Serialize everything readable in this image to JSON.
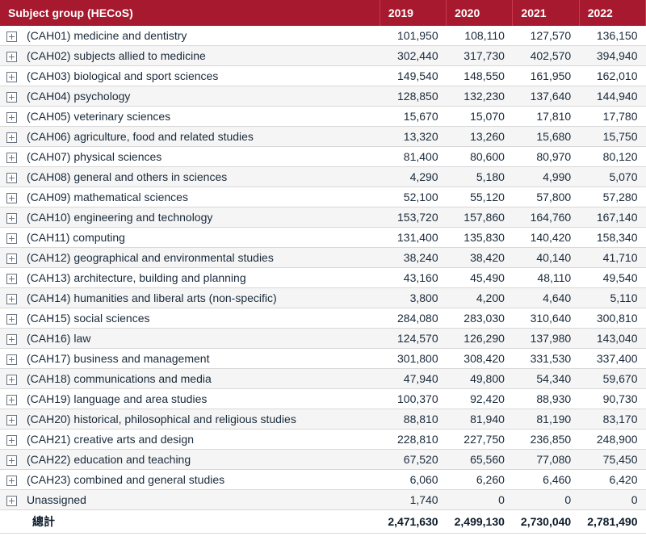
{
  "table": {
    "header_bg": "#a6192e",
    "header_fg": "#ffffff",
    "row_alt_bg": "#f5f5f5",
    "row_bg": "#ffffff",
    "border_color": "#d8d8d8",
    "text_color": "#1a2a3a",
    "font_size": 14,
    "columns": {
      "subject": "Subject group (HECoS)",
      "y2019": "2019",
      "y2020": "2020",
      "y2021": "2021",
      "y2022": "2022"
    },
    "rows": [
      {
        "label": "(CAH01) medicine and dentistry",
        "y2019": "101,950",
        "y2020": "108,110",
        "y2021": "127,570",
        "y2022": "136,150"
      },
      {
        "label": "(CAH02) subjects allied to medicine",
        "y2019": "302,440",
        "y2020": "317,730",
        "y2021": "402,570",
        "y2022": "394,940"
      },
      {
        "label": "(CAH03) biological and sport sciences",
        "y2019": "149,540",
        "y2020": "148,550",
        "y2021": "161,950",
        "y2022": "162,010"
      },
      {
        "label": "(CAH04) psychology",
        "y2019": "128,850",
        "y2020": "132,230",
        "y2021": "137,640",
        "y2022": "144,940"
      },
      {
        "label": "(CAH05) veterinary sciences",
        "y2019": "15,670",
        "y2020": "15,070",
        "y2021": "17,810",
        "y2022": "17,780"
      },
      {
        "label": "(CAH06) agriculture, food and related studies",
        "y2019": "13,320",
        "y2020": "13,260",
        "y2021": "15,680",
        "y2022": "15,750"
      },
      {
        "label": "(CAH07) physical sciences",
        "y2019": "81,400",
        "y2020": "80,600",
        "y2021": "80,970",
        "y2022": "80,120"
      },
      {
        "label": "(CAH08) general and others in sciences",
        "y2019": "4,290",
        "y2020": "5,180",
        "y2021": "4,990",
        "y2022": "5,070"
      },
      {
        "label": "(CAH09) mathematical sciences",
        "y2019": "52,100",
        "y2020": "55,120",
        "y2021": "57,800",
        "y2022": "57,280"
      },
      {
        "label": "(CAH10) engineering and technology",
        "y2019": "153,720",
        "y2020": "157,860",
        "y2021": "164,760",
        "y2022": "167,140"
      },
      {
        "label": "(CAH11) computing",
        "y2019": "131,400",
        "y2020": "135,830",
        "y2021": "140,420",
        "y2022": "158,340"
      },
      {
        "label": "(CAH12) geographical and environmental studies",
        "y2019": "38,240",
        "y2020": "38,420",
        "y2021": "40,140",
        "y2022": "41,710"
      },
      {
        "label": "(CAH13) architecture, building and planning",
        "y2019": "43,160",
        "y2020": "45,490",
        "y2021": "48,110",
        "y2022": "49,540"
      },
      {
        "label": "(CAH14) humanities and liberal arts (non-specific)",
        "y2019": "3,800",
        "y2020": "4,200",
        "y2021": "4,640",
        "y2022": "5,110"
      },
      {
        "label": "(CAH15) social sciences",
        "y2019": "284,080",
        "y2020": "283,030",
        "y2021": "310,640",
        "y2022": "300,810"
      },
      {
        "label": "(CAH16) law",
        "y2019": "124,570",
        "y2020": "126,290",
        "y2021": "137,980",
        "y2022": "143,040"
      },
      {
        "label": "(CAH17) business and management",
        "y2019": "301,800",
        "y2020": "308,420",
        "y2021": "331,530",
        "y2022": "337,400"
      },
      {
        "label": "(CAH18) communications and media",
        "y2019": "47,940",
        "y2020": "49,800",
        "y2021": "54,340",
        "y2022": "59,670"
      },
      {
        "label": "(CAH19) language and area studies",
        "y2019": "100,370",
        "y2020": "92,420",
        "y2021": "88,930",
        "y2022": "90,730"
      },
      {
        "label": "(CAH20) historical, philosophical and religious studies",
        "y2019": "88,810",
        "y2020": "81,940",
        "y2021": "81,190",
        "y2022": "83,170"
      },
      {
        "label": "(CAH21) creative arts and design",
        "y2019": "228,810",
        "y2020": "227,750",
        "y2021": "236,850",
        "y2022": "248,900"
      },
      {
        "label": "(CAH22) education and teaching",
        "y2019": "67,520",
        "y2020": "65,560",
        "y2021": "77,080",
        "y2022": "75,450"
      },
      {
        "label": "(CAH23) combined and general studies",
        "y2019": "6,060",
        "y2020": "6,260",
        "y2021": "6,460",
        "y2022": "6,420"
      },
      {
        "label": "Unassigned",
        "y2019": "1,740",
        "y2020": "0",
        "y2021": "0",
        "y2022": "0"
      }
    ],
    "total": {
      "label": "總計",
      "y2019": "2,471,630",
      "y2020": "2,499,130",
      "y2021": "2,730,040",
      "y2022": "2,781,490"
    }
  }
}
